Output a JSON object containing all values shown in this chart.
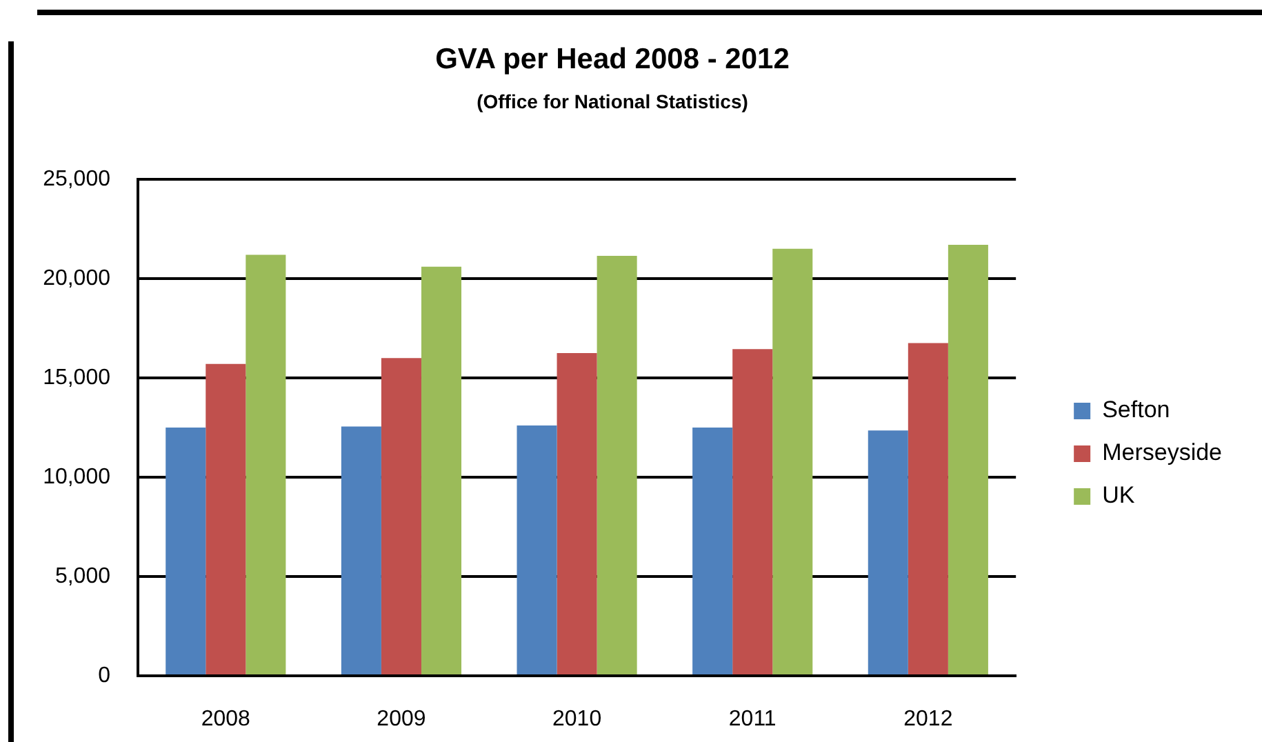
{
  "chart_data": {
    "type": "bar",
    "title": "GVA per Head 2008 - 2012",
    "subtitle": "(Office for National Statistics)",
    "categories": [
      "2008",
      "2009",
      "2010",
      "2011",
      "2012"
    ],
    "series": [
      {
        "name": "Sefton",
        "color": "#4f81bd",
        "values": [
          12500,
          12550,
          12600,
          12500,
          12350
        ]
      },
      {
        "name": "Merseyside",
        "color": "#c0504d",
        "values": [
          15700,
          16000,
          16250,
          16450,
          16750
        ]
      },
      {
        "name": "UK",
        "color": "#9bbb59",
        "values": [
          21200,
          20600,
          21150,
          21500,
          21700
        ]
      }
    ],
    "ylim": [
      0,
      25000
    ],
    "yticks": [
      0,
      {
        "value": 5000,
        "label": "5,000"
      },
      {
        "value": 10000,
        "label": "10,000"
      },
      {
        "value": 15000,
        "label": "15,000"
      },
      {
        "value": 20000,
        "label": "20,000"
      },
      {
        "value": 25000,
        "label": "25,000"
      }
    ],
    "grid": "y",
    "legend": "right"
  }
}
